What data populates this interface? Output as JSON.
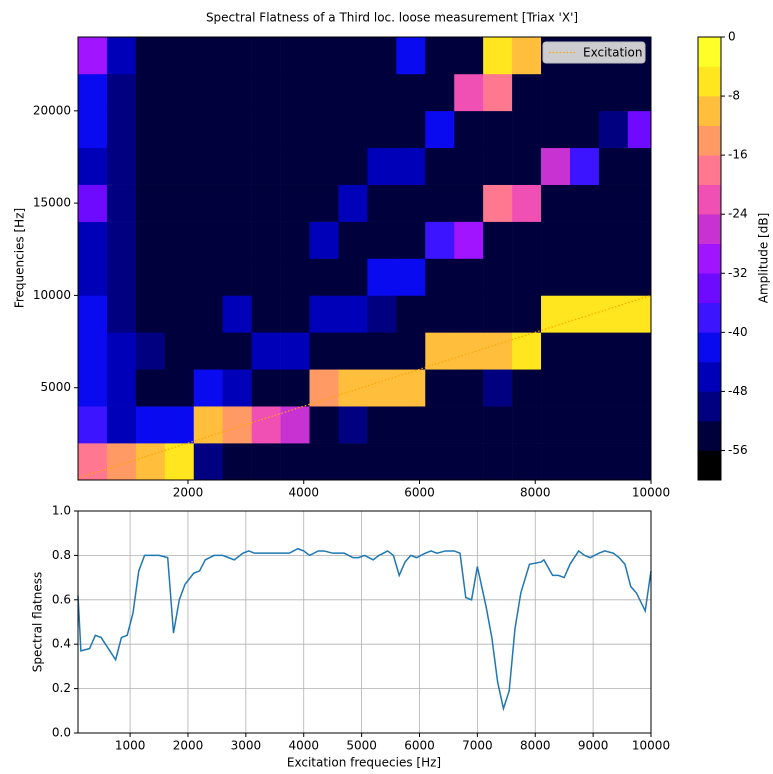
{
  "chart_data": [
    {
      "type": "heatmap",
      "title": "Spectral Flatness of a Third loc. loose measurement [Triax 'X']",
      "y_label": "Frequencies [Hz]",
      "x_edges": [
        100,
        600,
        1100,
        1600,
        2100,
        2600,
        3100,
        3600,
        4100,
        4600,
        5100,
        5600,
        6100,
        6600,
        7100,
        7600,
        8100,
        8600,
        9100,
        9600,
        10000
      ],
      "y_edges": [
        0,
        2000,
        4000,
        6000,
        8000,
        10000,
        12000,
        14000,
        16000,
        18000,
        20000,
        22000,
        24000
      ],
      "z": [
        [
          -20,
          -16,
          -12,
          -8,
          -52,
          -56,
          -56,
          -56,
          -56,
          -56,
          -56,
          -56,
          -56,
          -56,
          -56,
          -56,
          -56,
          -56,
          -56,
          -56
        ],
        [
          -40,
          -48,
          -44,
          -44,
          -12,
          -16,
          -24,
          -28,
          -56,
          -52,
          -56,
          -56,
          -56,
          -56,
          -56,
          -56,
          -56,
          -56,
          -56,
          -56
        ],
        [
          -44,
          -48,
          -56,
          -56,
          -44,
          -48,
          -56,
          -56,
          -16,
          -12,
          -12,
          -12,
          -56,
          -56,
          -52,
          -56,
          -56,
          -56,
          -56,
          -56
        ],
        [
          -44,
          -48,
          -52,
          -56,
          -56,
          -56,
          -48,
          -48,
          -56,
          -56,
          -56,
          -56,
          -12,
          -12,
          -12,
          -8,
          -56,
          -56,
          -56,
          -56
        ],
        [
          -44,
          -52,
          -56,
          -56,
          -56,
          -48,
          -56,
          -56,
          -48,
          -48,
          -52,
          -56,
          -56,
          -56,
          -56,
          -56,
          -8,
          -8,
          -8,
          -8
        ],
        [
          -48,
          -52,
          -56,
          -56,
          -56,
          -56,
          -56,
          -56,
          -56,
          -56,
          -44,
          -44,
          -56,
          -56,
          -56,
          -56,
          -56,
          -56,
          -56,
          -56
        ],
        [
          -48,
          -52,
          -56,
          -56,
          -56,
          -56,
          -56,
          -56,
          -48,
          -56,
          -56,
          -56,
          -40,
          -32,
          -56,
          -56,
          -56,
          -56,
          -56,
          -56
        ],
        [
          -36,
          -52,
          -56,
          -56,
          -56,
          -56,
          -56,
          -56,
          -56,
          -48,
          -56,
          -56,
          -56,
          -56,
          -20,
          -24,
          -56,
          -56,
          -56,
          -56
        ],
        [
          -48,
          -52,
          -56,
          -56,
          -56,
          -56,
          -56,
          -56,
          -56,
          -56,
          -48,
          -48,
          -56,
          -56,
          -56,
          -56,
          -28,
          -40,
          -56,
          -56
        ],
        [
          -44,
          -52,
          -56,
          -56,
          -56,
          -56,
          -56,
          -56,
          -56,
          -56,
          -56,
          -56,
          -44,
          -56,
          -56,
          -56,
          -56,
          -56,
          -52,
          -36
        ],
        [
          -44,
          -52,
          -56,
          -56,
          -56,
          -56,
          -56,
          -56,
          -56,
          -56,
          -56,
          -56,
          -56,
          -24,
          -20,
          -56,
          -56,
          -56,
          -56,
          -56
        ],
        [
          -32,
          -48,
          -56,
          -56,
          -56,
          -56,
          -56,
          -56,
          -56,
          -56,
          -56,
          -44,
          -56,
          -56,
          -8,
          -12,
          -56,
          -56,
          -56,
          -56
        ]
      ],
      "levels": [
        -60,
        -56,
        -52,
        -48,
        -44,
        -40,
        -36,
        -32,
        -28,
        -24,
        -20,
        -16,
        -12,
        -8,
        -4,
        0
      ],
      "colors": [
        "#000000",
        "#00003c",
        "#000080",
        "#0000b8",
        "#0a0af0",
        "#3c14ff",
        "#6e0aff",
        "#a014ff",
        "#c832d2",
        "#f050b4",
        "#ff7890",
        "#ff9a64",
        "#ffbe3c",
        "#ffe61e",
        "#ffff28"
      ],
      "top_color": "#ffffff",
      "colorbar": {
        "label": "Amplitude [dB]",
        "lim": [
          -60,
          0
        ],
        "ticks": [
          0,
          -8,
          -16,
          -24,
          -32,
          -40,
          -48,
          -56
        ]
      },
      "xlim": [
        100,
        10000
      ],
      "xticks": [
        2000,
        4000,
        6000,
        8000,
        10000
      ],
      "ylim": [
        0,
        24000
      ],
      "yticks": [
        5000,
        10000,
        15000,
        20000
      ],
      "series": [
        {
          "name": "Excitation",
          "color": "#ffa500",
          "x": [
            100,
            10000
          ],
          "values": [
            100,
            10000
          ]
        }
      ],
      "legend": "upper right"
    },
    {
      "type": "line",
      "x_label": "Excitation frequecies [Hz]",
      "y_label": "Spectral flatness",
      "xlim": [
        100,
        10000
      ],
      "xticks": [
        1000,
        2000,
        3000,
        4000,
        5000,
        6000,
        7000,
        8000,
        9000,
        10000
      ],
      "ylim": [
        0,
        1
      ],
      "yticks": [
        {
          "value": 0,
          "label": "0.0"
        },
        0.2,
        0.4,
        0.6,
        0.8,
        {
          "value": 1,
          "label": "1.0"
        }
      ],
      "grid": true,
      "color": "#1f77b4",
      "x": [
        100,
        150,
        300,
        400,
        500,
        600,
        750,
        850,
        950,
        1050,
        1150,
        1250,
        1350,
        1500,
        1650,
        1750,
        1850,
        1950,
        2100,
        2200,
        2300,
        2450,
        2600,
        2700,
        2800,
        2950,
        3050,
        3150,
        3300,
        3450,
        3600,
        3750,
        3900,
        4000,
        4100,
        4250,
        4350,
        4500,
        4700,
        4850,
        4950,
        5050,
        5200,
        5300,
        5450,
        5550,
        5650,
        5750,
        5850,
        5950,
        6100,
        6200,
        6300,
        6450,
        6600,
        6700,
        6800,
        6900,
        7000,
        7150,
        7250,
        7350,
        7450,
        7550,
        7650,
        7750,
        7900,
        8100,
        8150,
        8300,
        8400,
        8500,
        8600,
        8750,
        8850,
        8950,
        9100,
        9200,
        9350,
        9450,
        9550,
        9650,
        9750,
        9900,
        10000
      ],
      "values": [
        0.62,
        0.37,
        0.38,
        0.44,
        0.43,
        0.39,
        0.33,
        0.43,
        0.44,
        0.54,
        0.73,
        0.8,
        0.8,
        0.8,
        0.79,
        0.45,
        0.6,
        0.67,
        0.72,
        0.73,
        0.78,
        0.8,
        0.8,
        0.79,
        0.78,
        0.81,
        0.82,
        0.81,
        0.81,
        0.81,
        0.81,
        0.81,
        0.83,
        0.82,
        0.8,
        0.82,
        0.82,
        0.81,
        0.81,
        0.79,
        0.79,
        0.8,
        0.78,
        0.8,
        0.82,
        0.8,
        0.71,
        0.77,
        0.8,
        0.79,
        0.81,
        0.82,
        0.81,
        0.82,
        0.82,
        0.81,
        0.61,
        0.6,
        0.75,
        0.57,
        0.43,
        0.23,
        0.11,
        0.19,
        0.47,
        0.63,
        0.76,
        0.77,
        0.78,
        0.71,
        0.71,
        0.7,
        0.76,
        0.82,
        0.8,
        0.79,
        0.81,
        0.82,
        0.81,
        0.79,
        0.76,
        0.66,
        0.63,
        0.55,
        0.73
      ]
    }
  ]
}
